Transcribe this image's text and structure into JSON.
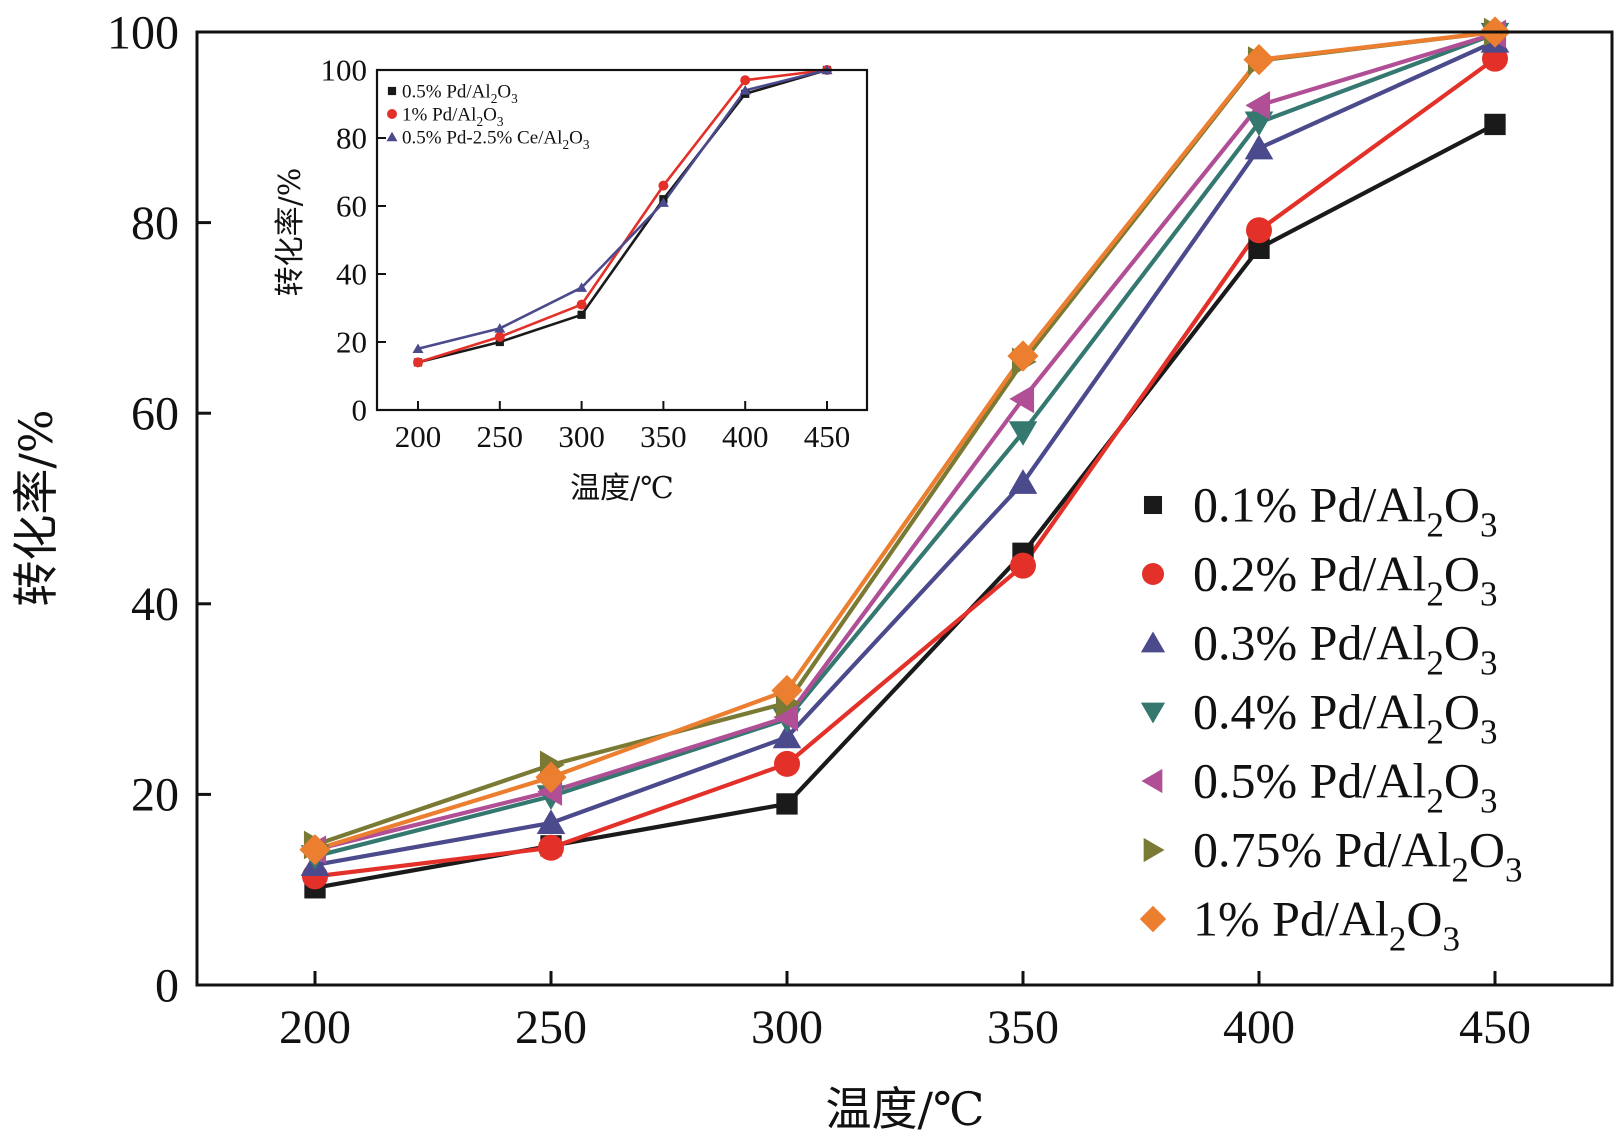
{
  "chart_data": [
    {
      "id": "main",
      "type": "line",
      "title": "",
      "xlabel": "温度/℃",
      "ylabel": "转化率/%",
      "x": [
        200,
        250,
        300,
        350,
        400,
        450
      ],
      "xticks": [
        "200",
        "250",
        "300",
        "350",
        "400",
        "450"
      ],
      "yticks": [
        "0",
        "20",
        "40",
        "60",
        "80",
        "100"
      ],
      "xlim": [
        176,
        475
      ],
      "ylim": [
        0,
        100
      ],
      "grid": false,
      "legend_position": "bottom-right",
      "series": [
        {
          "name": "0.1% Pd/Al2O3",
          "label_main": "0.1% Pd/Al",
          "sub": "2",
          "tail": "O",
          "sub2": "3",
          "marker": "square",
          "color": "#1a1a1a",
          "values": [
            10.2,
            14.6,
            19.0,
            45.3,
            77.3,
            90.3
          ]
        },
        {
          "name": "0.2% Pd/Al2O3",
          "label_main": "0.2% Pd/Al",
          "sub": "2",
          "tail": "O",
          "sub2": "3",
          "marker": "circle",
          "color": "#e3312a",
          "values": [
            11.4,
            14.4,
            23.2,
            44.0,
            79.2,
            97.2
          ]
        },
        {
          "name": "0.3% Pd/Al2O3",
          "label_main": "0.3% Pd/Al",
          "sub": "2",
          "tail": "O",
          "sub2": "3",
          "marker": "triangle-up",
          "color": "#4b4a8c",
          "values": [
            12.6,
            17.0,
            26.0,
            52.7,
            87.8,
            99.0
          ]
        },
        {
          "name": "0.4% Pd/Al2O3",
          "label_main": "0.4% Pd/Al",
          "sub": "2",
          "tail": "O",
          "sub2": "3",
          "marker": "triangle-down",
          "color": "#357870",
          "values": [
            13.5,
            19.8,
            27.9,
            58.0,
            90.5,
            99.8
          ]
        },
        {
          "name": "0.5% Pd/Al2O3",
          "label_main": "0.5% Pd/Al",
          "sub": "2",
          "tail": "O",
          "sub2": "3",
          "marker": "triangle-left",
          "color": "#b14f96",
          "values": [
            14.2,
            20.3,
            28.1,
            61.5,
            92.3,
            99.8
          ]
        },
        {
          "name": "0.75% Pd/Al2O3",
          "label_main": "0.75% Pd/Al",
          "sub": "2",
          "tail": "O",
          "sub2": "3",
          "marker": "triangle-right",
          "color": "#7a7a35",
          "values": [
            14.7,
            23.1,
            29.6,
            65.4,
            97.0,
            100.0
          ]
        },
        {
          "name": "1% Pd/Al2O3",
          "label_main": "1% Pd/Al",
          "sub": "2",
          "tail": "O",
          "sub2": "3",
          "marker": "diamond",
          "color": "#ec7e2f",
          "values": [
            14.2,
            21.8,
            30.9,
            66.0,
            97.1,
            100.0
          ]
        }
      ]
    },
    {
      "id": "inset",
      "type": "line",
      "title": "",
      "xlabel": "温度/℃",
      "ylabel": "转化率/%",
      "x": [
        200,
        250,
        300,
        350,
        400,
        450
      ],
      "xticks": [
        "200",
        "250",
        "300",
        "350",
        "400",
        "450"
      ],
      "yticks": [
        "0",
        "20",
        "40",
        "60",
        "80",
        "100"
      ],
      "xlim": [
        176,
        475
      ],
      "ylim": [
        0,
        100
      ],
      "grid": false,
      "legend_position": "top-left",
      "series": [
        {
          "name": "0.5% Pd/Al2O3",
          "label_main": "0.5% Pd/Al",
          "sub": "2",
          "tail": "O",
          "sub2": "3",
          "marker": "square",
          "color": "#1a1a1a",
          "values": [
            14.0,
            20.0,
            28.0,
            62.0,
            93.0,
            100.0
          ]
        },
        {
          "name": "1% Pd/Al2O3",
          "label_main": "1% Pd/Al",
          "sub": "2",
          "tail": "O",
          "sub2": "3",
          "marker": "circle",
          "color": "#e3312a",
          "values": [
            14.0,
            21.5,
            31.0,
            66.0,
            97.0,
            100.0
          ]
        },
        {
          "name": "0.5% Pd-2.5% Ce/Al2O3",
          "label_main": "0.5% Pd-2.5% Ce/Al",
          "sub": "2",
          "tail": "O",
          "sub2": "3",
          "marker": "triangle-up",
          "color": "#4b4a8c",
          "values": [
            18.0,
            24.0,
            36.0,
            61.0,
            94.0,
            100.0
          ]
        }
      ]
    }
  ]
}
